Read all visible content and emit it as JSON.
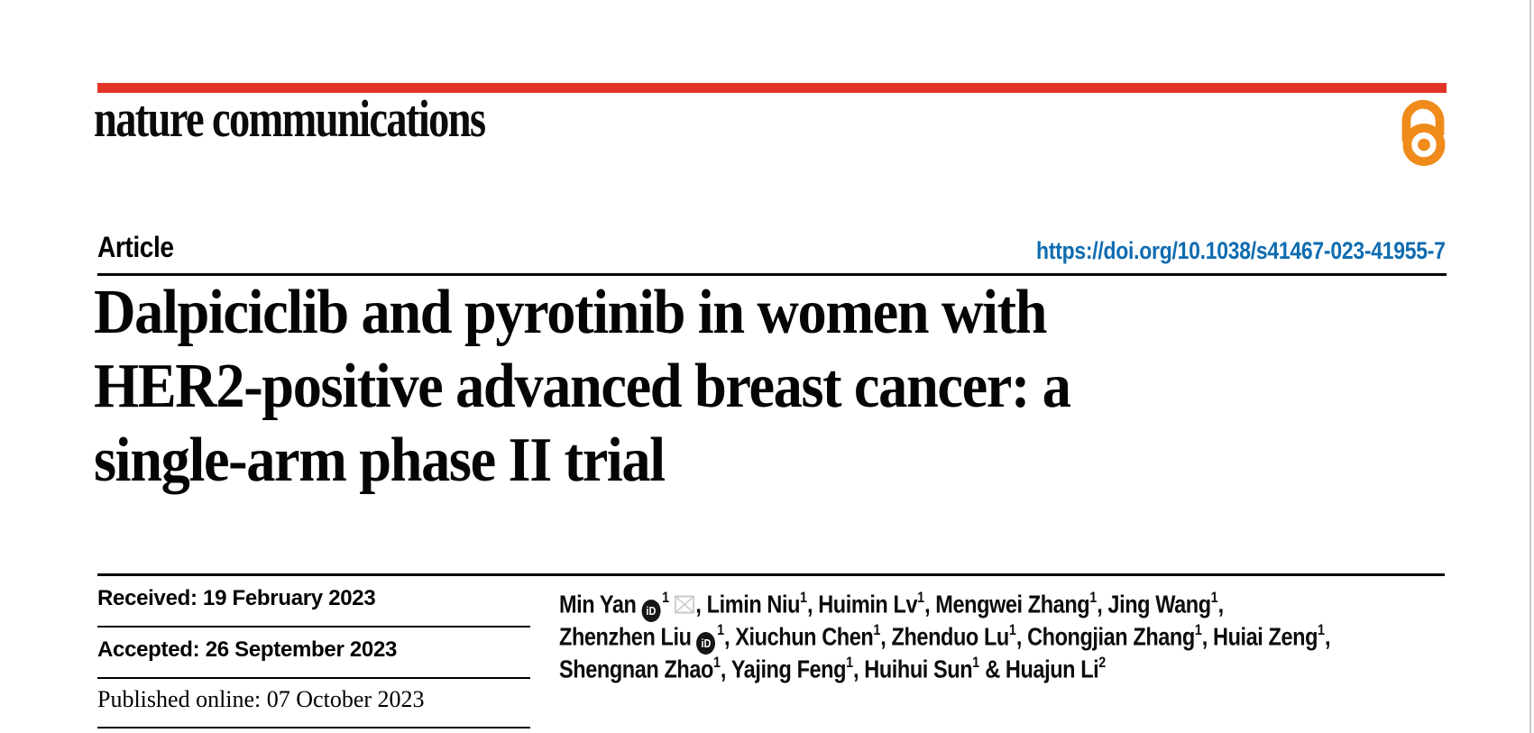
{
  "brand": {
    "logo_text": "nature communications",
    "accent_bar_color": "#e23527",
    "open_access_color": "#ef8b1a",
    "open_access_icon": "open-access-padlock"
  },
  "article": {
    "kicker": "Article",
    "doi": "https://doi.org/10.1038/s41467-023-41955-7",
    "doi_color": "#0f6cb0",
    "title_lines": [
      "Dalpiciclib and pyrotinib in women with",
      "HER2-positive advanced breast cancer: a",
      "single-arm phase II trial"
    ]
  },
  "history": {
    "rows": [
      {
        "text": "Received: 19 February 2023"
      },
      {
        "text": "Accepted: 26 September 2023"
      },
      {
        "text": "Published online: 07 October 2023"
      }
    ]
  },
  "authors": {
    "orcid_icon_label": "iD",
    "lines": [
      [
        {
          "t": "text",
          "v": "Min Yan"
        },
        {
          "t": "orcid"
        },
        {
          "t": "sup",
          "v": "1"
        },
        {
          "t": "mail"
        },
        {
          "t": "text",
          "v": ", Limin Niu"
        },
        {
          "t": "sup",
          "v": "1"
        },
        {
          "t": "text",
          "v": ", Huimin Lv"
        },
        {
          "t": "sup",
          "v": "1"
        },
        {
          "t": "text",
          "v": ", Mengwei Zhang"
        },
        {
          "t": "sup",
          "v": "1"
        },
        {
          "t": "text",
          "v": ", Jing Wang"
        },
        {
          "t": "sup",
          "v": "1"
        },
        {
          "t": "text",
          "v": ","
        }
      ],
      [
        {
          "t": "text",
          "v": "Zhenzhen Liu"
        },
        {
          "t": "orcid"
        },
        {
          "t": "sup",
          "v": "1"
        },
        {
          "t": "text",
          "v": ", Xiuchun Chen"
        },
        {
          "t": "sup",
          "v": "1"
        },
        {
          "t": "text",
          "v": ", Zhenduo Lu"
        },
        {
          "t": "sup",
          "v": "1"
        },
        {
          "t": "text",
          "v": ", Chongjian Zhang"
        },
        {
          "t": "sup",
          "v": "1"
        },
        {
          "t": "text",
          "v": ", Huiai Zeng"
        },
        {
          "t": "sup",
          "v": "1"
        },
        {
          "t": "text",
          "v": ","
        }
      ],
      [
        {
          "t": "text",
          "v": "Shengnan Zhao"
        },
        {
          "t": "sup",
          "v": "1"
        },
        {
          "t": "text",
          "v": ", Yajing Feng"
        },
        {
          "t": "sup",
          "v": "1"
        },
        {
          "t": "text",
          "v": ", Huihui Sun"
        },
        {
          "t": "sup",
          "v": "1"
        },
        {
          "t": "text",
          "v": " & Huajun Li"
        },
        {
          "t": "sup",
          "v": "2"
        }
      ]
    ]
  }
}
